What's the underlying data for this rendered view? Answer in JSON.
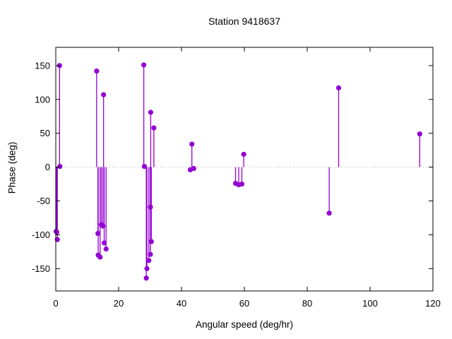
{
  "chart_data": {
    "type": "stem",
    "title": "Station 9418637",
    "xlabel": "Angular speed (deg/hr)",
    "ylabel": "Phase (deg)",
    "xlim": [
      0,
      120
    ],
    "ylim": [
      -183,
      177
    ],
    "x_ticks": [
      0,
      20,
      40,
      60,
      80,
      100,
      120
    ],
    "y_ticks": [
      -150,
      -100,
      -50,
      0,
      50,
      100,
      150
    ],
    "grid": "zero-line-only",
    "legend": "none",
    "series_color": "#9400d3",
    "zero_line_color": "#b0b0b0",
    "border_color": "#000000",
    "background_color": "#ffffff",
    "points": [
      {
        "x": 0.1,
        "y": -95
      },
      {
        "x": 0.3,
        "y": -96
      },
      {
        "x": 0.5,
        "y": -107
      },
      {
        "x": 1.2,
        "y": 150
      },
      {
        "x": 1.3,
        "y": 1
      },
      {
        "x": 13.0,
        "y": 142
      },
      {
        "x": 13.4,
        "y": -98
      },
      {
        "x": 13.5,
        "y": -130
      },
      {
        "x": 14.1,
        "y": -133
      },
      {
        "x": 14.5,
        "y": -85
      },
      {
        "x": 15.0,
        "y": -87
      },
      {
        "x": 15.2,
        "y": 107
      },
      {
        "x": 15.4,
        "y": -112
      },
      {
        "x": 16.0,
        "y": -121
      },
      {
        "x": 28.0,
        "y": 151
      },
      {
        "x": 28.2,
        "y": 1
      },
      {
        "x": 28.8,
        "y": -164
      },
      {
        "x": 29.0,
        "y": -150
      },
      {
        "x": 29.6,
        "y": -138
      },
      {
        "x": 30.1,
        "y": -129
      },
      {
        "x": 30.1,
        "y": -59
      },
      {
        "x": 30.2,
        "y": 81
      },
      {
        "x": 30.4,
        "y": -110
      },
      {
        "x": 31.2,
        "y": 58
      },
      {
        "x": 42.8,
        "y": -4
      },
      {
        "x": 43.3,
        "y": 34
      },
      {
        "x": 43.9,
        "y": -2
      },
      {
        "x": 57.2,
        "y": -24
      },
      {
        "x": 58.2,
        "y": -26
      },
      {
        "x": 59.2,
        "y": -25
      },
      {
        "x": 59.8,
        "y": 19
      },
      {
        "x": 87.0,
        "y": -68
      },
      {
        "x": 90.0,
        "y": 117
      },
      {
        "x": 115.8,
        "y": 49
      }
    ]
  }
}
